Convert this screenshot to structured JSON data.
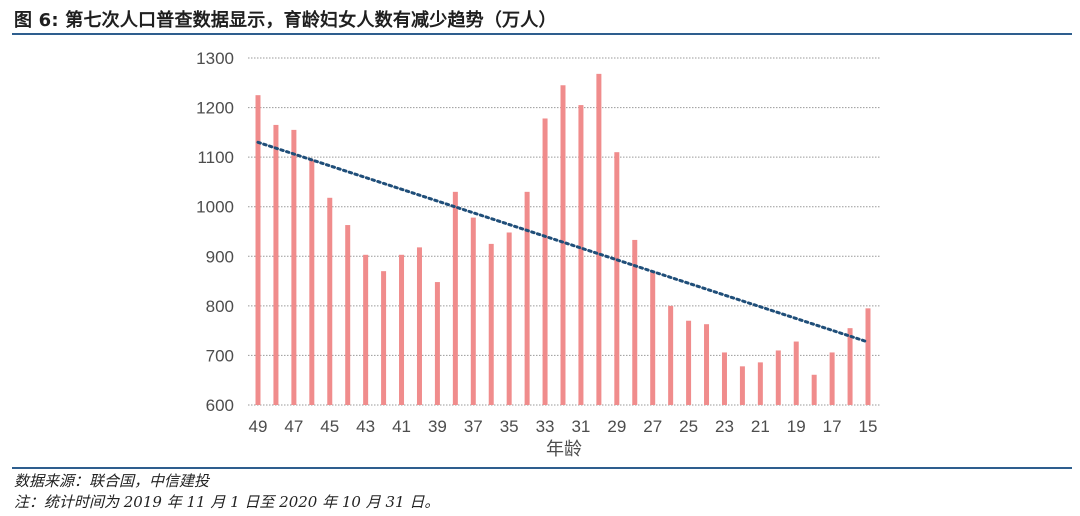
{
  "header": {
    "title": "图 6: 第七次人口普查数据显示，育龄妇女人数有减少趋势（万人）"
  },
  "footer": {
    "source": "数据来源：联合国，中信建投",
    "note": "注：统计时间为 2019 年 11 月 1 日至 2020 年 10 月 31 日。"
  },
  "colors": {
    "bar": "#f08c8c",
    "trend": "#1f4e79",
    "grid": "#9a9a9a",
    "rule": "#2e5e8e"
  },
  "chart_data": {
    "type": "bar",
    "title": "第七次人口普查数据显示，育龄妇女人数有减少趋势（万人）",
    "xlabel": "年龄",
    "ylabel": "",
    "ylim": [
      600,
      1300
    ],
    "yticks": [
      600,
      700,
      800,
      900,
      1000,
      1100,
      1200,
      1300
    ],
    "grid": true,
    "categories": [
      49,
      48,
      47,
      46,
      45,
      44,
      43,
      42,
      41,
      40,
      39,
      38,
      37,
      36,
      35,
      34,
      33,
      32,
      31,
      30,
      29,
      28,
      27,
      26,
      25,
      24,
      23,
      22,
      21,
      20,
      19,
      18,
      17,
      16,
      15
    ],
    "x_tick_labels": [
      "49",
      "47",
      "45",
      "43",
      "41",
      "39",
      "37",
      "35",
      "33",
      "31",
      "29",
      "27",
      "25",
      "23",
      "21",
      "19",
      "17",
      "15"
    ],
    "values": [
      1225,
      1165,
      1155,
      1095,
      1018,
      963,
      903,
      870,
      903,
      918,
      848,
      1030,
      978,
      925,
      948,
      1030,
      1178,
      1245,
      1205,
      1268,
      1110,
      933,
      870,
      800,
      770,
      763,
      706,
      678,
      686,
      710,
      728,
      661,
      706,
      755,
      795
    ],
    "trendline": {
      "type": "linear",
      "style": "dotted",
      "start": 1130,
      "end": 727
    }
  }
}
